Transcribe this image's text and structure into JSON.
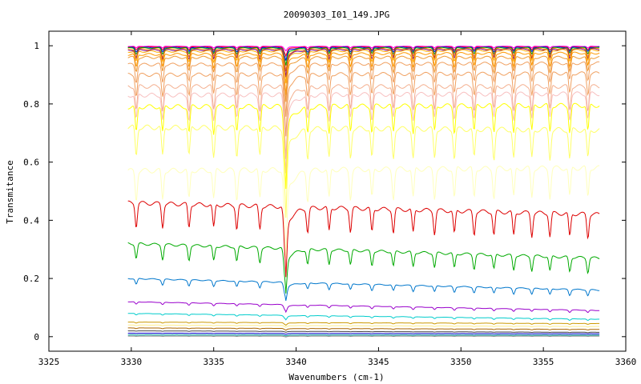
{
  "chart_data": {
    "type": "line",
    "title": "20090303_I01_149.JPG",
    "xlabel": "Wavenumbers (cm-1)",
    "ylabel": "Transmitance",
    "xlim": [
      3325,
      3360
    ],
    "ylim": [
      -0.05,
      1.05
    ],
    "x_range": [
      3329.8,
      3358.4
    ],
    "xticks": [
      3325,
      3330,
      3335,
      3340,
      3345,
      3350,
      3355,
      3360
    ],
    "yticks": [
      0,
      0.2,
      0.4,
      0.6,
      0.8,
      1
    ],
    "ytick_labels": [
      "0",
      "0.2",
      "0.4",
      "0.6",
      "0.8",
      "1"
    ],
    "grid": false,
    "legend": "none",
    "dip_positions": [
      3330.3,
      3331.9,
      3333.5,
      3335.0,
      3336.4,
      3337.8,
      3339.35,
      3340.7,
      3342.0,
      3343.3,
      3344.6,
      3345.9,
      3347.1,
      3348.4,
      3349.6,
      3350.8,
      3352.0,
      3353.2,
      3354.3,
      3355.4,
      3356.6,
      3357.7
    ],
    "series": [
      {
        "color": "#ff00ff",
        "values": {
          "start": 0.998,
          "end": 0.998,
          "depth": 0.005
        }
      },
      {
        "color": "#ff0000",
        "values": {
          "start": 0.996,
          "end": 0.996,
          "depth": 0.01
        }
      },
      {
        "color": "#0000ff",
        "values": {
          "start": 0.994,
          "end": 0.995,
          "depth": 0.015
        }
      },
      {
        "color": "#00aa00",
        "values": {
          "start": 0.992,
          "end": 0.993,
          "depth": 0.02
        }
      },
      {
        "color": "#ff8000",
        "values": {
          "start": 0.988,
          "end": 0.99,
          "depth": 0.025
        }
      },
      {
        "color": "#800080",
        "values": {
          "start": 0.985,
          "end": 0.988,
          "depth": 0.03
        }
      },
      {
        "color": "#ffaa00",
        "values": {
          "start": 0.98,
          "end": 0.985,
          "depth": 0.035
        }
      },
      {
        "color": "#ff9900",
        "values": {
          "start": 0.97,
          "end": 0.975,
          "depth": 0.045
        }
      },
      {
        "color": "#ee9933",
        "values": {
          "start": 0.96,
          "end": 0.96,
          "depth": 0.05
        }
      },
      {
        "color": "#f0a060",
        "values": {
          "start": 0.935,
          "end": 0.94,
          "depth": 0.06
        }
      },
      {
        "color": "#f0a060",
        "values": {
          "start": 0.9,
          "end": 0.905,
          "depth": 0.07
        }
      },
      {
        "color": "#f4b090",
        "values": {
          "start": 0.86,
          "end": 0.86,
          "depth": 0.08
        }
      },
      {
        "color": "#f8c0c0",
        "values": {
          "start": 0.83,
          "end": 0.835,
          "depth": 0.085
        }
      },
      {
        "color": "#ffff00",
        "values": {
          "start": 0.79,
          "end": 0.795,
          "depth": 0.09
        }
      },
      {
        "color": "#ffff66",
        "values": {
          "start": 0.72,
          "end": 0.71,
          "depth": 0.1
        }
      },
      {
        "color": "#ffffbb",
        "values": {
          "start": 0.57,
          "end": 0.58,
          "depth": 0.1
        }
      },
      {
        "color": "#dd0000",
        "values": {
          "start": 0.46,
          "end": 0.42,
          "depth": 0.08
        }
      },
      {
        "color": "#00aa00",
        "values": {
          "start": 0.32,
          "end": 0.27,
          "depth": 0.05
        }
      },
      {
        "color": "#0077cc",
        "values": {
          "start": 0.2,
          "end": 0.16,
          "depth": 0.02
        }
      },
      {
        "color": "#9900cc",
        "values": {
          "start": 0.12,
          "end": 0.09,
          "depth": 0.008
        }
      },
      {
        "color": "#00cccc",
        "values": {
          "start": 0.08,
          "end": 0.06,
          "depth": 0.005
        }
      },
      {
        "color": "#cc9900",
        "values": {
          "start": 0.05,
          "end": 0.045,
          "depth": 0.003
        }
      },
      {
        "color": "#ffee88",
        "values": {
          "start": 0.04,
          "end": 0.035,
          "depth": 0.002
        }
      },
      {
        "color": "#aa6600",
        "values": {
          "start": 0.03,
          "end": 0.025,
          "depth": 0.002
        }
      },
      {
        "color": "#444444",
        "values": {
          "start": 0.02,
          "end": 0.015,
          "depth": 0.001
        }
      },
      {
        "color": "#0000cc",
        "values": {
          "start": 0.012,
          "end": 0.01,
          "depth": 0.001
        }
      },
      {
        "color": "#009999",
        "values": {
          "start": 0.006,
          "end": 0.005,
          "depth": 0.001
        }
      },
      {
        "color": "#888888",
        "values": {
          "start": 0.002,
          "end": 0.002,
          "depth": 0.001
        }
      }
    ]
  }
}
